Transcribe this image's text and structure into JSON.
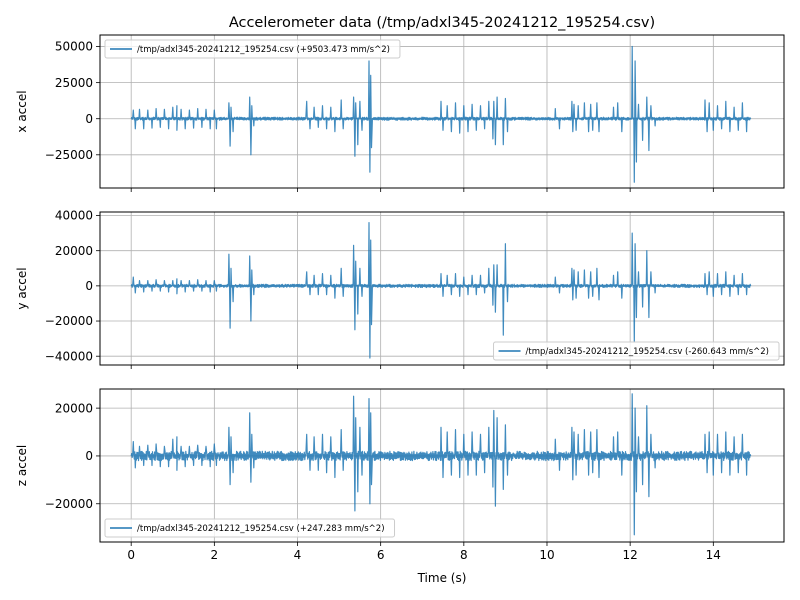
{
  "chart_data": [
    {
      "type": "line",
      "title": "Accelerometer data (/tmp/adxl345-20241212_195254.csv)",
      "ylabel": "x accel",
      "xlabel": "",
      "xlim": [
        -0.75,
        15.7
      ],
      "ylim": [
        -48000,
        58000
      ],
      "xticks": [
        0,
        2,
        4,
        6,
        8,
        10,
        12,
        14
      ],
      "yticks": [
        -25000,
        0,
        25000,
        50000
      ],
      "ytick_labels": [
        "−25000",
        "0",
        "25000",
        "50000"
      ],
      "grid": true,
      "legend": "upper left",
      "series": [
        {
          "name": "/tmp/adxl345-20241212_195254.csv (+9503.473 mm/s^2)",
          "color": "#1f77b4",
          "baseline_amplitude": 800,
          "x": [
            0,
            0.05,
            0.1,
            0.2,
            0.3,
            0.4,
            0.5,
            0.6,
            0.7,
            0.8,
            0.9,
            1.0,
            1.1,
            1.1,
            1.2,
            1.3,
            1.4,
            1.5,
            1.6,
            1.7,
            1.8,
            1.9,
            2.0,
            2.05,
            2.1,
            2.35,
            2.38,
            2.4,
            2.45,
            2.5,
            2.85,
            2.88,
            2.9,
            2.95,
            4.2,
            4.22,
            4.3,
            4.4,
            4.5,
            4.6,
            4.7,
            4.8,
            4.9,
            5.05,
            5.1,
            5.35,
            5.38,
            5.4,
            5.45,
            5.5,
            5.55,
            5.72,
            5.74,
            5.76,
            5.78,
            5.8,
            7.45,
            7.5,
            7.6,
            7.7,
            7.8,
            7.9,
            8.0,
            8.1,
            8.2,
            8.3,
            8.4,
            8.5,
            8.6,
            8.7,
            8.72,
            8.76,
            8.8,
            8.95,
            9.0,
            9.05,
            9.2,
            10.2,
            10.3,
            10.35,
            10.6,
            10.62,
            10.65,
            10.7,
            10.75,
            10.9,
            11.0,
            11.05,
            11.1,
            11.2,
            11.25,
            11.6,
            11.7,
            11.8,
            12.05,
            12.1,
            12.12,
            12.15,
            12.2,
            12.3,
            12.4,
            12.45,
            12.5,
            12.6,
            13.0,
            13.5,
            13.8,
            13.85,
            13.9,
            14.0,
            14.1,
            14.2,
            14.3,
            14.4,
            14.5,
            14.6,
            14.7,
            14.8,
            14.9
          ],
          "y": [
            0,
            6000,
            -7000,
            6500,
            -7000,
            6000,
            -6500,
            7000,
            -6000,
            6500,
            -7000,
            8000,
            9000,
            -8000,
            6500,
            -7000,
            6000,
            -6500,
            7000,
            -6000,
            6500,
            -7000,
            6000,
            -7000,
            0,
            11000,
            -19000,
            8000,
            -9000,
            0,
            15000,
            -25000,
            9000,
            -5000,
            0,
            12000,
            -7000,
            8000,
            -6000,
            9000,
            -7000,
            8000,
            -9000,
            13000,
            -7000,
            15000,
            -26000,
            11000,
            -18000,
            12000,
            -8000,
            40000,
            -37000,
            30000,
            -20000,
            0,
            12000,
            -8000,
            9000,
            -9000,
            11000,
            -10000,
            9000,
            -9000,
            10000,
            -8000,
            9000,
            -7000,
            12000,
            -14000,
            12000,
            -18000,
            15000,
            -18000,
            14000,
            -9000,
            0,
            7000,
            -7000,
            0,
            12000,
            -9000,
            10000,
            -8000,
            9000,
            11000,
            -9000,
            10000,
            -8000,
            11000,
            -9000,
            8000,
            11000,
            -9000,
            50000,
            -44000,
            40000,
            -30000,
            10000,
            -15000,
            15000,
            -22000,
            9000,
            -5000,
            0,
            0,
            13000,
            -9000,
            11000,
            -8000,
            9000,
            -7000,
            12000,
            -9000,
            8000,
            -8000,
            11000,
            -9000,
            0
          ]
        }
      ]
    },
    {
      "type": "line",
      "title": "",
      "ylabel": "y accel",
      "xlabel": "",
      "xlim": [
        -0.75,
        15.7
      ],
      "ylim": [
        -45000,
        42000
      ],
      "xticks": [
        0,
        2,
        4,
        6,
        8,
        10,
        12,
        14
      ],
      "yticks": [
        -40000,
        -20000,
        0,
        20000,
        40000
      ],
      "ytick_labels": [
        "−40000",
        "−20000",
        "0",
        "20000",
        "40000"
      ],
      "grid": true,
      "legend": "lower right",
      "series": [
        {
          "name": "/tmp/adxl345-20241212_195254.csv (-260.643 mm/s^2)",
          "color": "#1f77b4",
          "baseline_amplitude": 700,
          "x": [
            0,
            0.05,
            0.1,
            0.2,
            0.3,
            0.4,
            0.5,
            0.6,
            0.7,
            0.8,
            0.9,
            1.0,
            1.1,
            1.1,
            1.2,
            1.3,
            1.4,
            1.5,
            1.6,
            1.7,
            1.8,
            1.9,
            2.0,
            2.05,
            2.1,
            2.35,
            2.38,
            2.4,
            2.45,
            2.5,
            2.85,
            2.88,
            2.9,
            2.95,
            4.2,
            4.22,
            4.3,
            4.4,
            4.5,
            4.6,
            4.7,
            4.8,
            4.9,
            5.05,
            5.1,
            5.35,
            5.38,
            5.4,
            5.45,
            5.5,
            5.55,
            5.72,
            5.74,
            5.76,
            5.78,
            5.8,
            7.45,
            7.5,
            7.6,
            7.7,
            7.8,
            7.9,
            8.0,
            8.1,
            8.2,
            8.3,
            8.4,
            8.5,
            8.6,
            8.7,
            8.72,
            8.76,
            8.8,
            8.95,
            9.0,
            9.05,
            9.2,
            10.2,
            10.3,
            10.35,
            10.6,
            10.62,
            10.65,
            10.7,
            10.75,
            10.9,
            11.0,
            11.05,
            11.1,
            11.2,
            11.25,
            11.6,
            11.7,
            11.8,
            12.05,
            12.1,
            12.12,
            12.15,
            12.2,
            12.3,
            12.4,
            12.45,
            12.5,
            12.6,
            13.0,
            13.5,
            13.8,
            13.85,
            13.9,
            14.0,
            14.1,
            14.2,
            14.3,
            14.4,
            14.5,
            14.6,
            14.7,
            14.8,
            14.9
          ],
          "y": [
            0,
            5000,
            -4000,
            3000,
            -3500,
            3000,
            -3000,
            3500,
            -3000,
            3000,
            -3500,
            3000,
            4000,
            -4500,
            3000,
            -3500,
            3000,
            -3000,
            3500,
            -3000,
            3000,
            -3500,
            3000,
            -3000,
            0,
            18000,
            -24000,
            10000,
            -9000,
            0,
            17000,
            -20000,
            9000,
            -5000,
            0,
            8000,
            -5000,
            6000,
            -5000,
            7000,
            -5000,
            6000,
            -7000,
            10000,
            -6000,
            23000,
            -25000,
            14000,
            -16000,
            10000,
            -6000,
            36000,
            -41000,
            26000,
            -22000,
            0,
            7000,
            -6000,
            6000,
            -5000,
            7000,
            -6000,
            5000,
            -5000,
            6000,
            -5000,
            6000,
            -4000,
            10000,
            -11000,
            12000,
            -15000,
            12000,
            -28000,
            24000,
            -9000,
            0,
            5000,
            -4000,
            0,
            10000,
            -8000,
            9000,
            -7000,
            8000,
            9000,
            -7000,
            8000,
            -6000,
            10000,
            -8000,
            6000,
            8000,
            -7000,
            30000,
            -32000,
            24000,
            -18000,
            8000,
            -12000,
            20000,
            -18000,
            8000,
            -4000,
            0,
            0,
            7000,
            -5000,
            8000,
            -6000,
            7000,
            -5000,
            8000,
            -6000,
            6000,
            -5000,
            7000,
            -5000,
            0
          ]
        }
      ]
    },
    {
      "type": "line",
      "title": "",
      "ylabel": "z accel",
      "xlabel": "Time (s)",
      "xlim": [
        -0.75,
        15.7
      ],
      "ylim": [
        -36000,
        28000
      ],
      "xticks": [
        0,
        2,
        4,
        6,
        8,
        10,
        12,
        14
      ],
      "xtick_labels": [
        "0",
        "2",
        "4",
        "6",
        "8",
        "10",
        "12",
        "14"
      ],
      "yticks": [
        -20000,
        0,
        20000
      ],
      "ytick_labels": [
        "−20000",
        "0",
        "20000"
      ],
      "grid": true,
      "legend": "lower left",
      "series": [
        {
          "name": "/tmp/adxl345-20241212_195254.csv (+247.283 mm/s^2)",
          "color": "#1f77b4",
          "baseline_amplitude": 1500,
          "x": [
            0,
            0.05,
            0.1,
            0.2,
            0.3,
            0.4,
            0.5,
            0.6,
            0.7,
            0.8,
            0.9,
            1.0,
            1.1,
            1.1,
            1.2,
            1.3,
            1.4,
            1.5,
            1.6,
            1.7,
            1.8,
            1.9,
            2.0,
            2.05,
            2.1,
            2.35,
            2.38,
            2.4,
            2.45,
            2.5,
            2.85,
            2.88,
            2.9,
            2.95,
            4.2,
            4.22,
            4.3,
            4.4,
            4.5,
            4.6,
            4.7,
            4.8,
            4.9,
            5.05,
            5.1,
            5.35,
            5.38,
            5.4,
            5.45,
            5.5,
            5.55,
            5.72,
            5.74,
            5.76,
            5.78,
            5.8,
            7.45,
            7.5,
            7.6,
            7.7,
            7.8,
            7.9,
            8.0,
            8.1,
            8.2,
            8.3,
            8.4,
            8.5,
            8.6,
            8.7,
            8.72,
            8.76,
            8.8,
            8.95,
            9.0,
            9.05,
            9.2,
            10.2,
            10.3,
            10.35,
            10.6,
            10.62,
            10.65,
            10.7,
            10.75,
            10.9,
            11.0,
            11.05,
            11.1,
            11.2,
            11.25,
            11.6,
            11.7,
            11.8,
            12.05,
            12.1,
            12.12,
            12.15,
            12.2,
            12.3,
            12.4,
            12.45,
            12.5,
            12.6,
            13.0,
            13.5,
            13.8,
            13.85,
            13.9,
            14.0,
            14.1,
            14.2,
            14.3,
            14.4,
            14.5,
            14.6,
            14.7,
            14.8,
            14.9
          ],
          "y": [
            0,
            6000,
            -5000,
            4000,
            -4000,
            4500,
            -4000,
            5000,
            -4500,
            4000,
            -4500,
            7000,
            8000,
            -6000,
            4000,
            -4500,
            4000,
            -4000,
            4500,
            -4000,
            4000,
            -4500,
            5000,
            -4000,
            0,
            12000,
            -12000,
            8000,
            -7000,
            0,
            18000,
            -11000,
            9000,
            -5000,
            0,
            9000,
            -6000,
            8000,
            -6000,
            9000,
            -7000,
            8000,
            -9000,
            11000,
            -6000,
            25000,
            -23000,
            16000,
            -15000,
            12000,
            -8000,
            24000,
            -20000,
            18000,
            -12000,
            0,
            12000,
            -9000,
            10000,
            -8000,
            11000,
            -9000,
            9000,
            -8000,
            10000,
            -8000,
            9000,
            -7000,
            12000,
            -13000,
            19000,
            -21000,
            16000,
            -14000,
            13000,
            -8000,
            0,
            7000,
            -6000,
            0,
            12000,
            -10000,
            10000,
            -8000,
            9000,
            11000,
            -8000,
            10000,
            -7000,
            11000,
            -9000,
            8000,
            10000,
            -8000,
            26000,
            -33000,
            20000,
            -15000,
            8000,
            -12000,
            21000,
            -17000,
            9000,
            -5000,
            0,
            0,
            9000,
            -7000,
            10000,
            -8000,
            9000,
            -7000,
            10000,
            -8000,
            8000,
            -7000,
            9000,
            -8000,
            0
          ]
        }
      ]
    }
  ]
}
